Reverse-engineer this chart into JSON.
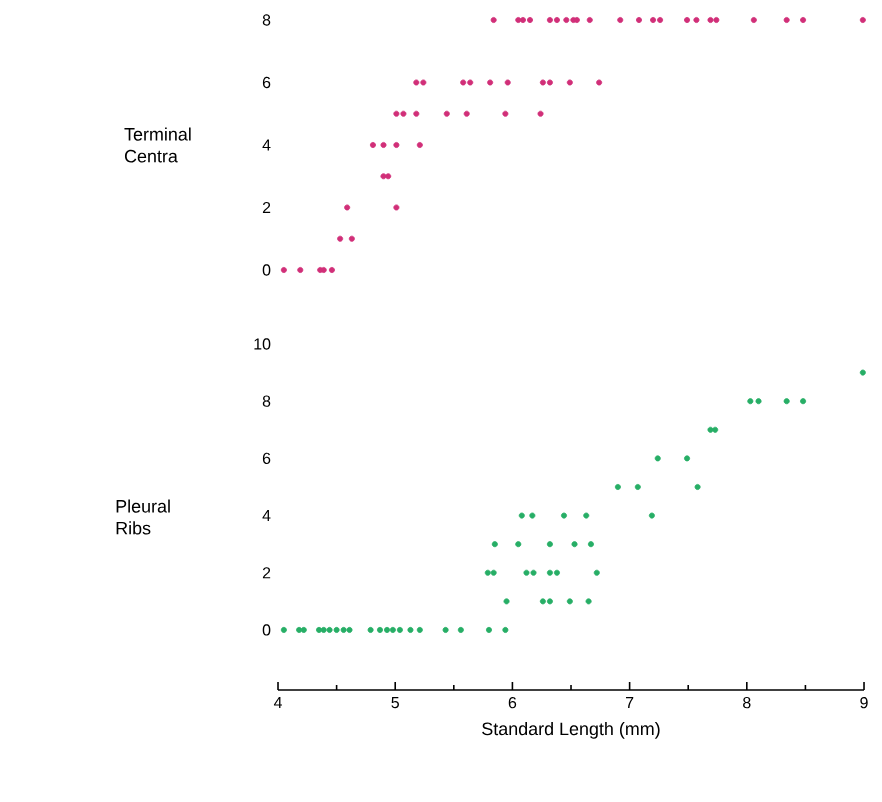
{
  "chart_data": [
    {
      "type": "scatter",
      "ylabel": "Terminal Centra",
      "xlim": [
        4,
        9
      ],
      "ylim": [
        0,
        8
      ],
      "yticks": [
        0,
        2,
        4,
        6,
        8
      ],
      "tick_labels": "y",
      "marker": "circle",
      "series": [
        {
          "color": "#d12f78",
          "x": [
            5.84,
            6.05,
            6.09,
            6.15,
            6.32,
            6.38,
            6.46,
            6.52,
            6.55,
            6.66,
            6.92,
            7.08,
            7.2,
            7.26,
            7.49,
            7.57,
            7.69,
            7.74,
            8.06,
            8.34,
            8.48,
            8.99,
            5.18,
            5.24,
            5.58,
            5.64,
            5.81,
            5.96,
            6.26,
            6.32,
            6.49,
            6.74,
            5.01,
            5.07,
            5.18,
            5.44,
            5.61,
            5.94,
            6.24,
            4.81,
            4.9,
            5.01,
            5.21,
            4.9,
            4.94,
            4.59,
            5.01,
            4.53,
            4.63,
            4.05,
            4.19,
            4.36,
            4.39,
            4.46
          ],
          "values": [
            8,
            8,
            8,
            8,
            8,
            8,
            8,
            8,
            8,
            8,
            8,
            8,
            8,
            8,
            8,
            8,
            8,
            8,
            8,
            8,
            8,
            8,
            6,
            6,
            6,
            6,
            6,
            6,
            6,
            6,
            6,
            6,
            5,
            5,
            5,
            5,
            5,
            5,
            5,
            4,
            4,
            4,
            4,
            3,
            3,
            2,
            2,
            1,
            1,
            0,
            0,
            0,
            0,
            0
          ]
        }
      ]
    },
    {
      "type": "scatter",
      "ylabel": "Pleural Ribs",
      "xlabel": "Standard Length (mm)",
      "xlim": [
        4,
        9
      ],
      "ylim": [
        -2.1,
        10
      ],
      "yticks": [
        0,
        2,
        4,
        6,
        8,
        10
      ],
      "xticks": [
        4,
        {
          "value": 4.5,
          "label": null
        },
        5,
        {
          "value": 5.5,
          "label": null
        },
        6,
        {
          "value": 6.5,
          "label": null
        },
        7,
        {
          "value": 7.5,
          "label": null
        },
        8,
        {
          "value": 8.5,
          "label": null
        },
        9
      ],
      "marker": "circle",
      "series": [
        {
          "color": "#27ae66",
          "x": [
            4.05,
            4.18,
            4.22,
            4.35,
            4.39,
            4.44,
            4.5,
            4.56,
            4.61,
            4.79,
            4.87,
            4.93,
            4.98,
            5.04,
            5.13,
            5.21,
            5.43,
            5.56,
            5.8,
            5.94,
            5.95,
            6.26,
            6.32,
            6.49,
            6.65,
            5.79,
            5.84,
            6.12,
            6.18,
            6.32,
            6.38,
            6.72,
            5.85,
            6.05,
            6.32,
            6.53,
            6.67,
            6.08,
            6.17,
            6.44,
            6.63,
            7.19,
            6.9,
            7.07,
            7.58,
            7.24,
            7.49,
            7.69,
            7.73,
            8.03,
            8.1,
            8.34,
            8.48,
            8.99
          ],
          "values": [
            0,
            0,
            0,
            0,
            0,
            0,
            0,
            0,
            0,
            0,
            0,
            0,
            0,
            0,
            0,
            0,
            0,
            0,
            0,
            0,
            1,
            1,
            1,
            1,
            1,
            2,
            2,
            2,
            2,
            2,
            2,
            2,
            3,
            3,
            3,
            3,
            3,
            4,
            4,
            4,
            4,
            4,
            5,
            5,
            5,
            6,
            6,
            7,
            7,
            8,
            8,
            8,
            8,
            9
          ]
        }
      ]
    }
  ]
}
